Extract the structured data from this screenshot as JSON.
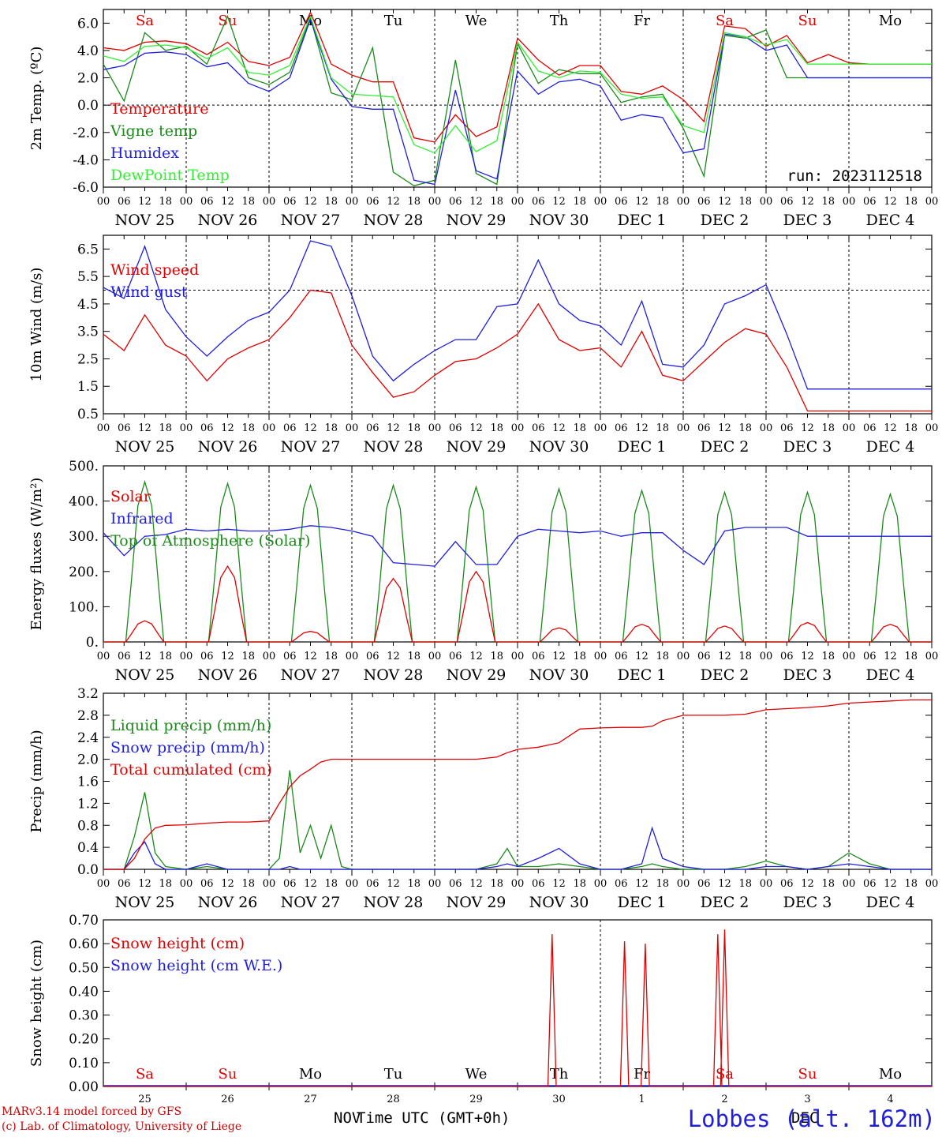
{
  "footer": {
    "credit_line1": "MARv3.14 model forced by GFS",
    "credit_line2": "(c) Lab. of Climatology, University of Liege",
    "xlabel": "Time UTC (GMT+0h)",
    "month_left": "NOV",
    "month_right": "DEC",
    "station": "Lobbes (alt. 162m)"
  },
  "colors": {
    "red": "#e00000",
    "green": "#1a8a1a",
    "blue": "#1f1fdd",
    "lightgreen": "#33ee33",
    "daylabel_weekend": "#e00000",
    "daylabel_weekday": "#000000"
  },
  "chart_data": [
    {
      "id": "temperature",
      "type": "line",
      "ylabel": "2m Temp. (ºC)",
      "ylim": [
        -6.0,
        7.0
      ],
      "yticks": [
        "-6.0",
        "-4.0",
        "-2.0",
        "0.0",
        "2.0",
        "4.0",
        "6.0"
      ],
      "hline": 0,
      "weekday_labels": [
        "Sa",
        "Su",
        "Mo",
        "Tu",
        "We",
        "Th",
        "Fr",
        "Sa",
        "Su",
        "Mo"
      ],
      "date_labels": [
        "NOV 25",
        "NOV 26",
        "NOV 27",
        "NOV 28",
        "NOV 29",
        "NOV 30",
        "DEC  1",
        "DEC  2",
        "DEC  3",
        "DEC  4"
      ],
      "hour_ticks": [
        "00",
        "06",
        "12",
        "18"
      ],
      "annotation": "run: 2023112518",
      "x_hours": [
        0,
        6,
        12,
        18,
        24,
        30,
        36,
        42,
        48,
        54,
        60,
        66,
        72,
        78,
        84,
        90,
        96,
        102,
        108,
        114,
        120,
        126,
        132,
        138,
        144,
        150,
        156,
        162,
        168,
        174,
        180,
        186,
        192,
        198,
        204,
        210,
        216,
        222,
        228,
        234,
        240
      ],
      "series": [
        {
          "name": "Temperature",
          "color": "#e00000",
          "values": [
            4.2,
            4.0,
            4.6,
            4.7,
            4.5,
            3.7,
            4.6,
            3.2,
            2.9,
            3.5,
            6.8,
            3.0,
            2.2,
            1.7,
            1.7,
            -2.4,
            -2.7,
            -0.7,
            -2.3,
            -1.6,
            4.9,
            3.3,
            2.2,
            2.9,
            2.9,
            1.0,
            0.8,
            1.4,
            0.4,
            -1.2,
            5.8,
            5.6,
            4.3,
            5.1,
            3.1,
            3.7,
            3.1,
            3.0,
            3.0,
            3.0,
            3.0
          ]
        },
        {
          "name": "Vigne temp",
          "color": "#1a8a1a",
          "values": [
            3.0,
            0.3,
            5.3,
            4.0,
            4.3,
            3.0,
            6.5,
            2.0,
            1.5,
            2.4,
            6.4,
            0.9,
            0.4,
            4.2,
            -4.9,
            -5.9,
            -5.5,
            3.3,
            -5.0,
            -5.8,
            4.5,
            1.6,
            2.6,
            2.3,
            2.3,
            0.2,
            0.6,
            0.8,
            -1.7,
            -5.2,
            5.1,
            4.9,
            5.5,
            2.0,
            2.0,
            2.0,
            2.0,
            2.0,
            2.0,
            2.0,
            2.0
          ]
        },
        {
          "name": "Humidex",
          "color": "#1f1fdd",
          "values": [
            2.6,
            2.9,
            3.8,
            3.9,
            3.7,
            2.8,
            3.1,
            1.6,
            1.0,
            2.0,
            6.3,
            1.9,
            -0.1,
            -0.3,
            -0.3,
            -5.5,
            -5.8,
            1.1,
            -4.8,
            -5.4,
            2.5,
            0.8,
            1.7,
            1.9,
            1.4,
            -1.1,
            -0.7,
            -0.9,
            -3.5,
            -3.2,
            5.2,
            5.0,
            4.0,
            4.4,
            2.0,
            2.0,
            2.0,
            2.0,
            2.0,
            2.0,
            2.0
          ]
        },
        {
          "name": "DewPoint Temp",
          "color": "#33ee33",
          "values": [
            3.6,
            3.2,
            4.3,
            4.4,
            4.2,
            3.4,
            4.2,
            2.4,
            2.2,
            2.9,
            6.5,
            2.0,
            0.8,
            0.7,
            0.6,
            -2.9,
            -3.5,
            -1.5,
            -3.4,
            -2.6,
            4.6,
            2.5,
            2.0,
            2.5,
            2.4,
            0.8,
            0.5,
            0.6,
            -1.5,
            -2.0,
            5.3,
            5.0,
            4.4,
            4.8,
            3.0,
            3.0,
            3.0,
            3.0,
            3.0,
            3.0,
            3.0
          ]
        }
      ]
    },
    {
      "id": "wind",
      "type": "line",
      "ylabel": "10m Wind (m/s)",
      "ylim": [
        0.5,
        7.0
      ],
      "yticks": [
        "0.5",
        "1.5",
        "2.5",
        "3.5",
        "4.5",
        "5.5",
        "6.5"
      ],
      "hline": 5,
      "date_labels": [
        "NOV 25",
        "NOV 26",
        "NOV 27",
        "NOV 28",
        "NOV 29",
        "NOV 30",
        "DEC  1",
        "DEC  2",
        "DEC  3",
        "DEC  4"
      ],
      "hour_ticks": [
        "00",
        "06",
        "12",
        "18"
      ],
      "x_hours": [
        0,
        6,
        12,
        18,
        24,
        30,
        36,
        42,
        48,
        54,
        60,
        66,
        72,
        78,
        84,
        90,
        96,
        102,
        108,
        114,
        120,
        126,
        132,
        138,
        144,
        150,
        156,
        162,
        168,
        174,
        180,
        186,
        192,
        198,
        204,
        210,
        216,
        222,
        228,
        234,
        240
      ],
      "series": [
        {
          "name": "Wind speed",
          "color": "#e00000",
          "values": [
            3.4,
            2.8,
            4.1,
            3.0,
            2.6,
            1.7,
            2.5,
            2.9,
            3.2,
            4.0,
            5.0,
            4.9,
            3.0,
            2.0,
            1.1,
            1.3,
            1.9,
            2.4,
            2.5,
            2.9,
            3.4,
            4.5,
            3.2,
            2.8,
            2.9,
            2.2,
            3.5,
            1.9,
            1.7,
            2.4,
            3.1,
            3.6,
            3.4,
            2.2,
            0.6,
            0.6,
            0.6,
            0.6,
            0.6,
            0.6,
            0.6
          ]
        },
        {
          "name": "Wind gust",
          "color": "#1f1fdd",
          "values": [
            5.1,
            4.7,
            6.6,
            4.3,
            3.3,
            2.6,
            3.3,
            3.9,
            4.2,
            5.0,
            6.8,
            6.6,
            4.8,
            2.6,
            1.7,
            2.3,
            2.8,
            3.2,
            3.2,
            4.4,
            4.5,
            6.1,
            4.5,
            3.9,
            3.7,
            3.0,
            4.6,
            2.3,
            2.2,
            3.0,
            4.5,
            4.8,
            5.2,
            3.4,
            1.4,
            1.4,
            1.4,
            1.4,
            1.4,
            1.4,
            1.4
          ]
        }
      ]
    },
    {
      "id": "energy",
      "type": "line",
      "ylabel": "Energy fluxes (W/m²)",
      "ylim": [
        0,
        500
      ],
      "yticks": [
        "0.",
        "100.",
        "200.",
        "300.",
        "400.",
        "500."
      ],
      "date_labels": [
        "NOV 25",
        "NOV 26",
        "NOV 27",
        "NOV 28",
        "NOV 29",
        "NOV 30",
        "DEC  1",
        "DEC  2",
        "DEC  3",
        "DEC  4"
      ],
      "hour_ticks": [
        "00",
        "06",
        "12",
        "18"
      ],
      "day_peaks": {
        "Solar": [
          60,
          215,
          30,
          180,
          200,
          40,
          50,
          45,
          55,
          50
        ],
        "Top of Atmosphere (Solar)": [
          455,
          450,
          445,
          445,
          440,
          435,
          430,
          425,
          425,
          420
        ]
      },
      "series": [
        {
          "name": "Solar",
          "color": "#e00000"
        },
        {
          "name": "Infrared",
          "color": "#1f1fdd",
          "x_hours": [
            0,
            6,
            12,
            18,
            24,
            30,
            36,
            42,
            48,
            54,
            60,
            66,
            72,
            78,
            84,
            90,
            96,
            102,
            108,
            114,
            120,
            126,
            132,
            138,
            144,
            150,
            156,
            162,
            168,
            174,
            180,
            186,
            192,
            198,
            204,
            210,
            216,
            222,
            228,
            234,
            240
          ],
          "values": [
            310,
            245,
            300,
            305,
            320,
            315,
            320,
            315,
            315,
            320,
            330,
            325,
            315,
            300,
            225,
            220,
            215,
            285,
            220,
            220,
            300,
            320,
            315,
            310,
            315,
            300,
            310,
            310,
            260,
            220,
            315,
            325,
            325,
            325,
            300,
            300,
            300,
            300,
            300,
            300,
            300
          ]
        },
        {
          "name": "Top of Atmosphere (Solar)",
          "color": "#1a8a1a"
        }
      ]
    },
    {
      "id": "precip",
      "type": "line",
      "ylabel": "Precip (mm/h)",
      "ylim": [
        0,
        3.2
      ],
      "yticks": [
        "0.0",
        "0.4",
        "0.8",
        "1.2",
        "1.6",
        "2.0",
        "2.4",
        "2.8",
        "3.2"
      ],
      "date_labels": [
        "NOV 25",
        "NOV 26",
        "NOV 27",
        "NOV 28",
        "NOV 29",
        "NOV 30",
        "DEC  1",
        "DEC  2",
        "DEC  3",
        "DEC  4"
      ],
      "hour_ticks": [
        "00",
        "06",
        "12",
        "18"
      ],
      "x_hours": [
        0,
        6,
        9,
        12,
        15,
        18,
        24,
        30,
        36,
        42,
        48,
        51,
        54,
        57,
        60,
        63,
        66,
        69,
        72,
        78,
        84,
        90,
        96,
        102,
        108,
        114,
        117,
        120,
        126,
        132,
        138,
        144,
        150,
        156,
        159,
        162,
        168,
        174,
        180,
        186,
        192,
        198,
        204,
        210,
        216,
        222,
        228,
        234,
        240
      ],
      "series": [
        {
          "name": "Liquid precip (mm/h)",
          "color": "#1a8a1a",
          "values": [
            0,
            0,
            0.6,
            1.4,
            0.3,
            0.05,
            0,
            0.05,
            0,
            0,
            0,
            0.2,
            1.8,
            0.3,
            0.8,
            0.2,
            0.8,
            0.05,
            0,
            0,
            0,
            0,
            0,
            0,
            0,
            0.1,
            0.38,
            0.05,
            0.05,
            0.1,
            0.05,
            0,
            0,
            0.05,
            0.1,
            0.05,
            0,
            0,
            0,
            0.05,
            0.15,
            0.05,
            0,
            0.05,
            0.3,
            0.1,
            0,
            0,
            0
          ]
        },
        {
          "name": "Snow precip (mm/h)",
          "color": "#1f1fdd",
          "values": [
            0,
            0,
            0.3,
            0.5,
            0.1,
            0,
            0,
            0.1,
            0,
            0,
            0,
            0,
            0.05,
            0,
            0,
            0,
            0,
            0,
            0,
            0,
            0,
            0,
            0,
            0,
            0,
            0.05,
            0.1,
            0.05,
            0.2,
            0.38,
            0.1,
            0,
            0,
            0.1,
            0.75,
            0.2,
            0.05,
            0,
            0,
            0,
            0.05,
            0.05,
            0,
            0.05,
            0.1,
            0.05,
            0,
            0,
            0
          ]
        },
        {
          "name": "Total cumulated (cm)",
          "color": "#e00000",
          "values": [
            0,
            0,
            0.2,
            0.55,
            0.75,
            0.8,
            0.81,
            0.84,
            0.86,
            0.86,
            0.88,
            1.2,
            1.5,
            1.7,
            1.82,
            1.95,
            2.0,
            2.0,
            2.0,
            2.0,
            2.0,
            2.0,
            2.0,
            2.0,
            2.0,
            2.04,
            2.12,
            2.18,
            2.22,
            2.3,
            2.55,
            2.57,
            2.58,
            2.58,
            2.6,
            2.7,
            2.8,
            2.8,
            2.8,
            2.82,
            2.9,
            2.92,
            2.94,
            2.97,
            3.02,
            3.04,
            3.06,
            3.08,
            3.08
          ]
        }
      ]
    },
    {
      "id": "snow",
      "type": "line",
      "ylabel": "Snow height (cm)",
      "ylim": [
        0,
        0.7
      ],
      "yticks": [
        "0.00",
        "0.10",
        "0.20",
        "0.30",
        "0.40",
        "0.50",
        "0.60",
        "0.70"
      ],
      "weekday_labels": [
        "Sa",
        "Su",
        "Mo",
        "Tu",
        "We",
        "Th",
        "Fr",
        "Sa",
        "Su",
        "Mo"
      ],
      "day_numbers": [
        "25",
        "26",
        "27",
        "28",
        "29",
        "30",
        "1",
        "2",
        "3",
        "4"
      ],
      "spikes_hours": [
        130,
        151,
        157,
        178,
        180
      ],
      "spikes_values": [
        0.64,
        0.61,
        0.6,
        0.64,
        0.66
      ],
      "series": [
        {
          "name": "Snow height (cm)",
          "color": "#e00000"
        },
        {
          "name": "Snow height (cm W.E.)",
          "color": "#1f1fdd"
        }
      ]
    }
  ]
}
